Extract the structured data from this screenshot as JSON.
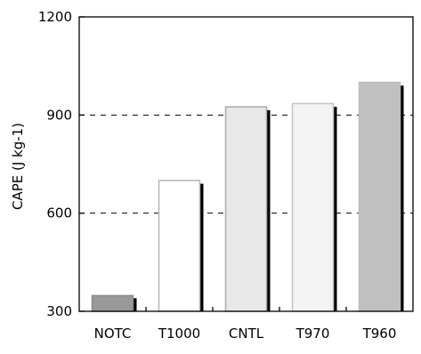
{
  "chart_data": {
    "type": "bar",
    "categories": [
      "NOTC",
      "T1000",
      "CNTL",
      "T970",
      "T960"
    ],
    "values": [
      348,
      700,
      925,
      935,
      1000
    ],
    "shadow_values": [
      340,
      690,
      915,
      925,
      990
    ],
    "ylabel": "CAPE (J kg-1)",
    "xlabel": "",
    "ylim": [
      300,
      1200
    ],
    "yticks": [
      300,
      600,
      900,
      1200
    ],
    "grid_y": [
      600,
      900
    ],
    "grid_style": "dashed",
    "bar_colors": [
      "#999999",
      "#ffffff",
      "#e8e8e8",
      "#f3f3f3",
      "#c0c0c0"
    ],
    "bar_edge_colors": [
      "#8a8a8a",
      "#b5b5b5",
      "#aaaaaa",
      "#c4c4c4",
      "#bdbdbd"
    ],
    "shadow_color": "#000000"
  }
}
